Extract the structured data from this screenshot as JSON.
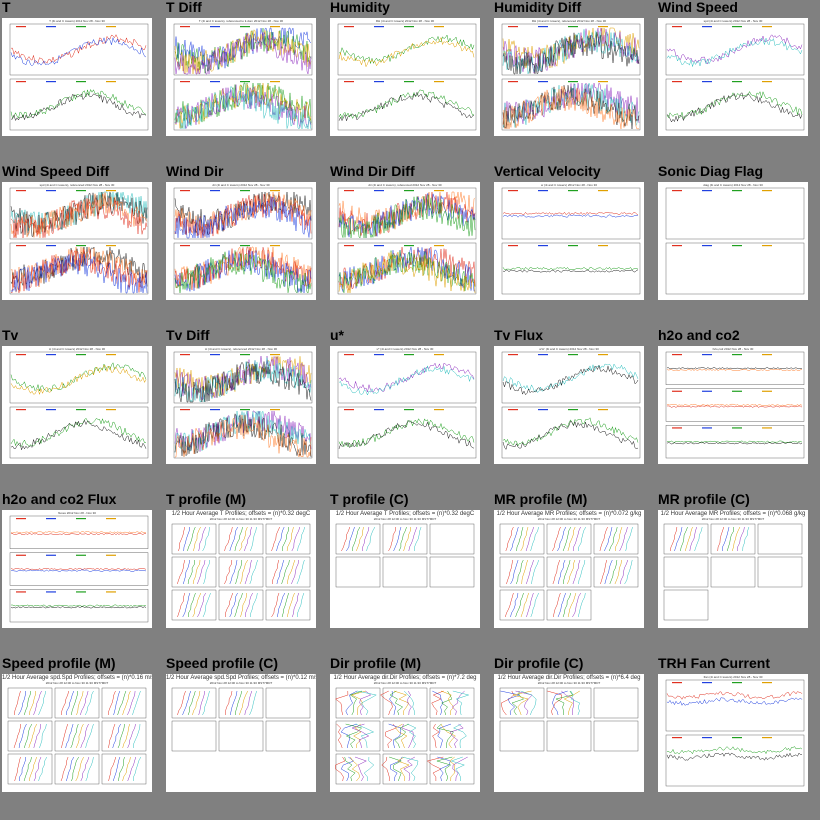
{
  "cells": [
    {
      "title": "T",
      "type": "ts",
      "panels": 2,
      "header": "T (4t and C towers) 2012 Nov 28 - Nov 30",
      "dense": false
    },
    {
      "title": "T Diff",
      "type": "ts",
      "panels": 2,
      "header": "T (4t and C towers), referenced to tt.dom 2012 Nov 28 - Nov 30",
      "dense": true
    },
    {
      "title": "Humidity",
      "type": "ts",
      "panels": 2,
      "header": "RH (4t and C towers) 2012 Nov 28 - Nov 30",
      "dense": false
    },
    {
      "title": "Humidity Diff",
      "type": "ts",
      "panels": 2,
      "header": "RH (4t and C towers), referenced 2012 Nov 28 - Nov 30",
      "dense": true
    },
    {
      "title": "Wind Speed",
      "type": "ts",
      "panels": 2,
      "header": "spd (4t and C towers) 2012 Nov 28 - Nov 30",
      "dense": false
    },
    {
      "title": "Wind Speed Diff",
      "type": "ts",
      "panels": 2,
      "header": "spd (4t and C towers), referenced 2012 Nov 28 - Nov 30",
      "dense": true
    },
    {
      "title": "Wind Dir",
      "type": "ts",
      "panels": 2,
      "header": "dir (4t and C towers) 2012 Nov 28 - Nov 30",
      "dense": true
    },
    {
      "title": "Wind Dir Diff",
      "type": "ts",
      "panels": 2,
      "header": "dir (4t and C towers), referenced 2012 Nov 28 - Nov 30",
      "dense": true
    },
    {
      "title": "Vertical Velocity",
      "type": "ts",
      "panels": 2,
      "header": "w (4t and C towers) 2012 Nov 28 - Nov 30",
      "dense": false,
      "flat": true
    },
    {
      "title": "Sonic Diag Flag",
      "type": "ts",
      "panels": 2,
      "header": "diag (4t and C towers) 2012 Nov 28 - Nov 30",
      "dense": false,
      "flat": true,
      "empty": true
    },
    {
      "title": "Tv",
      "type": "ts",
      "panels": 2,
      "header": "tc (4t and C towers) 2012 Nov 28 - Nov 30",
      "dense": false
    },
    {
      "title": "Tv Diff",
      "type": "ts",
      "panels": 2,
      "header": "tc (4t and C towers), referenced 2012 Nov 28 - Nov 30",
      "dense": true
    },
    {
      "title": "u*",
      "type": "ts",
      "panels": 2,
      "header": "u* (4t and C towers) 2012 Nov 28 - Nov 30",
      "dense": false
    },
    {
      "title": "Tv Flux",
      "type": "ts",
      "panels": 2,
      "header": "w'tc' (4t and C towers) 2012 Nov 28 - Nov 30",
      "dense": false
    },
    {
      "title": "h2o and co2",
      "type": "ts",
      "panels": 3,
      "header": "h2o,co2 2012 Nov 28 - Nov 30",
      "dense": false,
      "flat": true
    },
    {
      "title": "h2o and co2 Flux",
      "type": "ts",
      "panels": 3,
      "header": "fluxes 2012 Nov 28 - Nov 30",
      "dense": false,
      "flat": true
    },
    {
      "title": "T profile (M)",
      "type": "prof",
      "header": "1/2 Hour Average T Profiles; offsets = (n)*0.32 degC",
      "sub": "2012 Nov 28 12:00 to Nov 30 11:30 MST7MDT"
    },
    {
      "title": "T profile (C)",
      "type": "prof",
      "header": "1/2 Hour Average T Profiles; offsets = (n)*0.32 degC",
      "sub": "2012 Nov 28 12:00 to Nov 30 11:30 MST7MDT"
    },
    {
      "title": "MR profile (M)",
      "type": "prof",
      "header": "1/2 Hour Average MR Profiles; offsets = (n)*0.072 g/kg",
      "sub": "2012 Nov 28 12:00 to Nov 30 11:30 MST7MDT"
    },
    {
      "title": "MR profile (C)",
      "type": "prof",
      "header": "1/2 Hour Average MR Profiles; offsets = (n)*0.068 g/kg",
      "sub": "2012 Nov 28 12:00 to Nov 30 11:30 MST7MDT"
    },
    {
      "title": "Speed profile (M)",
      "type": "prof",
      "header": "1/2 Hour Average spd.Spd Profiles; offsets = (n)*0.16 m/s",
      "sub": "2012 Nov 28 12:00 to Nov 30 11:30 MST7MDT"
    },
    {
      "title": "Speed profile (C)",
      "type": "prof",
      "header": "1/2 Hour Average spd.Spd Profiles; offsets = (n)*0.12 m/s",
      "sub": "2012 Nov 28 12:00 to Nov 30 11:30 MST7MDT"
    },
    {
      "title": "Dir profile (M)",
      "type": "prof",
      "header": "1/2 Hour Average dir.Dir Profiles; offsets = (n)*7.2 deg",
      "sub": "2012 Nov 28 12:00 to Nov 30 11:30 MST7MDT"
    },
    {
      "title": "Dir profile (C)",
      "type": "prof",
      "header": "1/2 Hour Average dir.Dir Profiles; offsets = (n)*6.4 deg",
      "sub": "2012 Nov 28 12:00 to Nov 30 11:30 MST7MDT"
    },
    {
      "title": "TRH Fan Current",
      "type": "ts",
      "panels": 2,
      "header": "Ifan (4t and C towers) 2012 Nov 28 - Nov 30",
      "dense": false,
      "bands": true
    }
  ],
  "colors": {
    "series": [
      "#e03020",
      "#2040e0",
      "#20a020",
      "#e0a000",
      "#9030c0",
      "#30c0c0",
      "#202020",
      "#ff8030"
    ],
    "page_bg": "#808080"
  }
}
